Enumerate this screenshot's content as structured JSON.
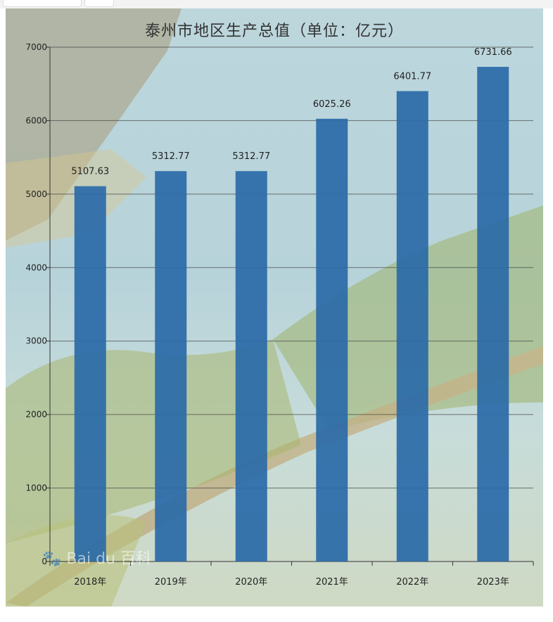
{
  "chart_data": {
    "type": "bar",
    "title": "泰州市地区生产总值（单位：亿元）",
    "categories": [
      "2018年",
      "2019年",
      "2020年",
      "2021年",
      "2022年",
      "2023年"
    ],
    "values": [
      5107.63,
      5312.77,
      5312.77,
      6025.26,
      6401.77,
      6731.66
    ],
    "data_labels": [
      "5107.63",
      "5312.77",
      "5312.77",
      "6025.26",
      "6401.77",
      "6731.66"
    ],
    "yticks": [
      "0",
      "1000",
      "2000",
      "3000",
      "4000",
      "5000",
      "6000",
      "7000"
    ],
    "ylim": [
      0,
      7000
    ],
    "grid": true,
    "legend": "none",
    "bar_color": "#2a6aa8"
  },
  "watermark": {
    "icon": "baidu-paw-icon",
    "text": "Bai du 百科"
  }
}
